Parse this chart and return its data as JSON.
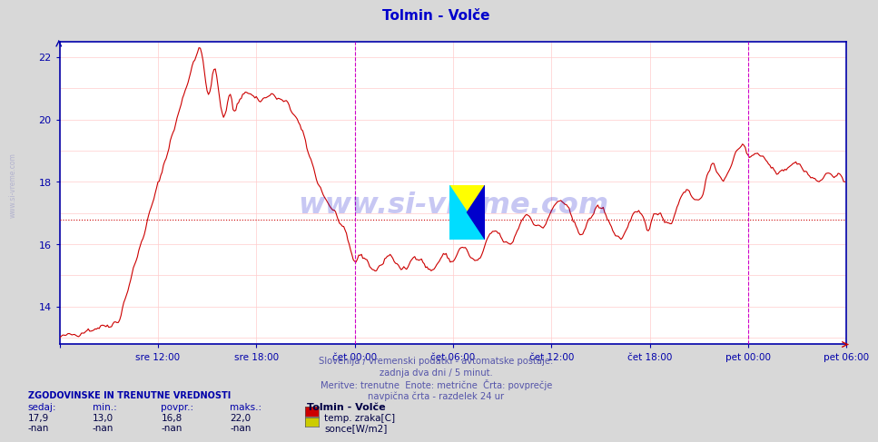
{
  "title": "Tolmin - Volče",
  "title_color": "#0000cc",
  "bg_color": "#d8d8d8",
  "plot_bg_color": "#ffffff",
  "grid_color_h": "#ffcccc",
  "grid_color_v": "#ffcccc",
  "axis_color": "#0000aa",
  "line_color": "#cc0000",
  "dashed_line_color": "#cc0000",
  "dashed_line_y": 16.8,
  "ylim_min": 12.8,
  "ylim_max": 22.5,
  "yticks": [
    14,
    16,
    18,
    20,
    22
  ],
  "ylabel_color": "#0000aa",
  "xlabel_color": "#0000aa",
  "xtick_labels": [
    "",
    "sre 12:00",
    "sre 18:00",
    "čet 00:00",
    "čet 06:00",
    "čet 12:00",
    "čet 18:00",
    "pet 00:00",
    "pet 06:00"
  ],
  "n_points": 576,
  "subtitle_lines": [
    "Slovenija / vremenski podatki - avtomatske postaje.",
    "zadnja dva dni / 5 minut.",
    "Meritve: trenutne  Enote: metrične  Črta: povprečje",
    "navpična črta - razdelek 24 ur"
  ],
  "subtitle_color": "#5555aa",
  "watermark_text": "www.si-vreme.com",
  "watermark_color": "#0000cc",
  "watermark_alpha": 0.22,
  "legend_title": "Tolmin - Volče",
  "legend_title_color": "#000044",
  "stats_header": "ZGODOVINSKE IN TRENUTNE VREDNOSTI",
  "stats_labels": [
    "sedaj:",
    "min.:",
    "povpr.:",
    "maks.:"
  ],
  "stats_values_temp": [
    "17,9",
    "13,0",
    "16,8",
    "22,0"
  ],
  "stats_values_sonce": [
    "-nan",
    "-nan",
    "-nan",
    "-nan"
  ],
  "legend_items": [
    {
      "label": "temp. zraka[C]",
      "color": "#cc0000"
    },
    {
      "label": "sonce[W/m2]",
      "color": "#cccc00"
    }
  ],
  "midnight_line_color": "#cc00cc",
  "sidebar_text": "www.si-vreme.com",
  "sidebar_color": "#aaaacc"
}
